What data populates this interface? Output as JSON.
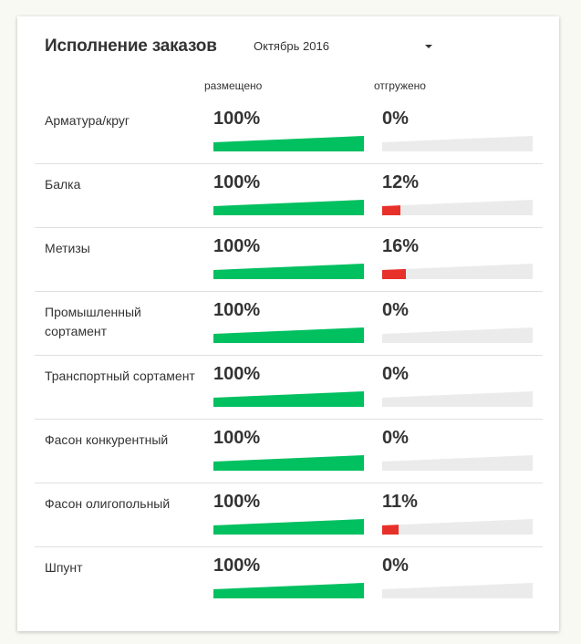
{
  "widget": {
    "title": "Исполнение заказов",
    "period": {
      "selected": "Октябрь 2016"
    },
    "columns": {
      "placed": "размещено",
      "shipped": "отгружено"
    },
    "colors": {
      "placed": "#00c060",
      "shipped": "#e8302a",
      "track": "#ebebeb"
    }
  },
  "rows": [
    {
      "label": "Арматура/круг",
      "placed": "100%",
      "placed_value": 100,
      "shipped": "0%",
      "shipped_value": 0
    },
    {
      "label": "Балка",
      "placed": "100%",
      "placed_value": 100,
      "shipped": "12%",
      "shipped_value": 12
    },
    {
      "label": "Метизы",
      "placed": "100%",
      "placed_value": 100,
      "shipped": "16%",
      "shipped_value": 16
    },
    {
      "label": "Промышленный сортамент",
      "placed": "100%",
      "placed_value": 100,
      "shipped": "0%",
      "shipped_value": 0
    },
    {
      "label": "Транспортный сортамент",
      "placed": "100%",
      "placed_value": 100,
      "shipped": "0%",
      "shipped_value": 0
    },
    {
      "label": "Фасон конкурентный",
      "placed": "100%",
      "placed_value": 100,
      "shipped": "0%",
      "shipped_value": 0
    },
    {
      "label": "Фасон олигопольный",
      "placed": "100%",
      "placed_value": 100,
      "shipped": "11%",
      "shipped_value": 11
    },
    {
      "label": "Шпунт",
      "placed": "100%",
      "placed_value": 100,
      "shipped": "0%",
      "shipped_value": 0
    }
  ]
}
